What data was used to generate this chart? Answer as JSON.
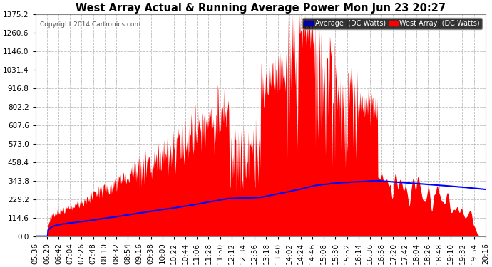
{
  "title": "West Array Actual & Running Average Power Mon Jun 23 20:27",
  "copyright": "Copyright 2014 Cartronics.com",
  "legend_avg": "Average  (DC Watts)",
  "legend_west": "West Array  (DC Watts)",
  "bg_color": "#ffffff",
  "plot_bg_color": "#ffffff",
  "grid_color": "#aaaaaa",
  "title_color": "#000000",
  "label_color": "#000000",
  "tick_color": "#000000",
  "ymin": 0.0,
  "ymax": 1375.2,
  "ytick_step": 114.6,
  "red_color": "#ff0000",
  "avg_line_color": "#0000ff",
  "x_labels": [
    "05:36",
    "06:20",
    "06:42",
    "07:04",
    "07:26",
    "07:48",
    "08:10",
    "08:32",
    "08:54",
    "09:16",
    "09:38",
    "10:00",
    "10:22",
    "10:44",
    "11:06",
    "11:28",
    "11:50",
    "12:12",
    "12:34",
    "12:56",
    "13:18",
    "13:40",
    "14:02",
    "14:24",
    "14:46",
    "15:08",
    "15:30",
    "15:52",
    "16:14",
    "16:36",
    "16:58",
    "17:20",
    "17:42",
    "18:04",
    "18:26",
    "18:48",
    "19:10",
    "19:32",
    "19:54",
    "20:16"
  ]
}
